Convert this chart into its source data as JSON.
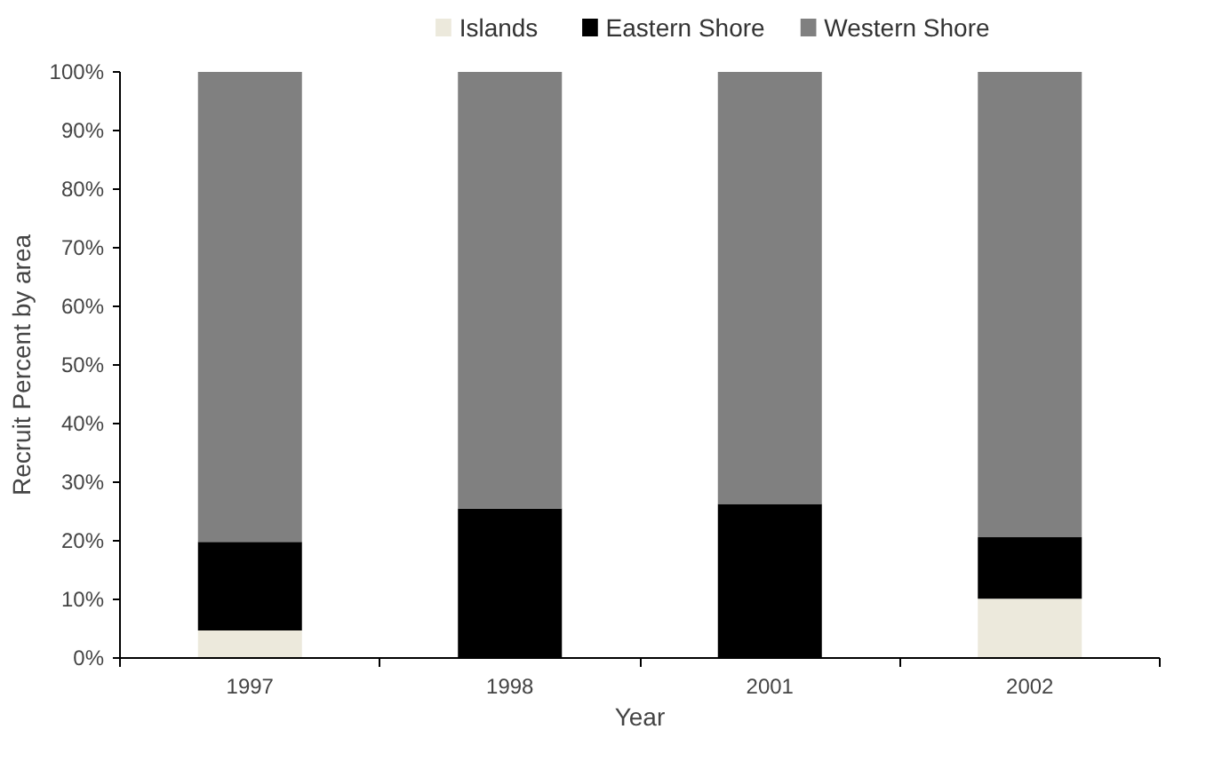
{
  "chart_data": {
    "type": "bar",
    "stacked": true,
    "xlabel": "Year",
    "ylabel": "Recruit Percent by area",
    "categories": [
      "1997",
      "1998",
      "2001",
      "2002"
    ],
    "series": [
      {
        "name": "Islands",
        "color": "#ece9dc",
        "values": [
          4.7,
          0,
          0,
          10.1
        ]
      },
      {
        "name": "Eastern Shore",
        "color": "#000000",
        "values": [
          15.1,
          25.5,
          26.3,
          10.5
        ]
      },
      {
        "name": "Western Shore",
        "color": "#808080",
        "values": [
          80.2,
          74.5,
          73.7,
          79.4
        ]
      }
    ],
    "ylim": [
      0,
      100
    ],
    "yticks": [
      {
        "value": 0,
        "label": "0%"
      },
      {
        "value": 10,
        "label": "10%"
      },
      {
        "value": 20,
        "label": "20%"
      },
      {
        "value": 30,
        "label": "30%"
      },
      {
        "value": 40,
        "label": "40%"
      },
      {
        "value": 50,
        "label": "50%"
      },
      {
        "value": 60,
        "label": "60%"
      },
      {
        "value": 70,
        "label": "70%"
      },
      {
        "value": 80,
        "label": "80%"
      },
      {
        "value": 90,
        "label": "90%"
      },
      {
        "value": 100,
        "label": "100%"
      }
    ],
    "legend": "top",
    "grid": false
  }
}
